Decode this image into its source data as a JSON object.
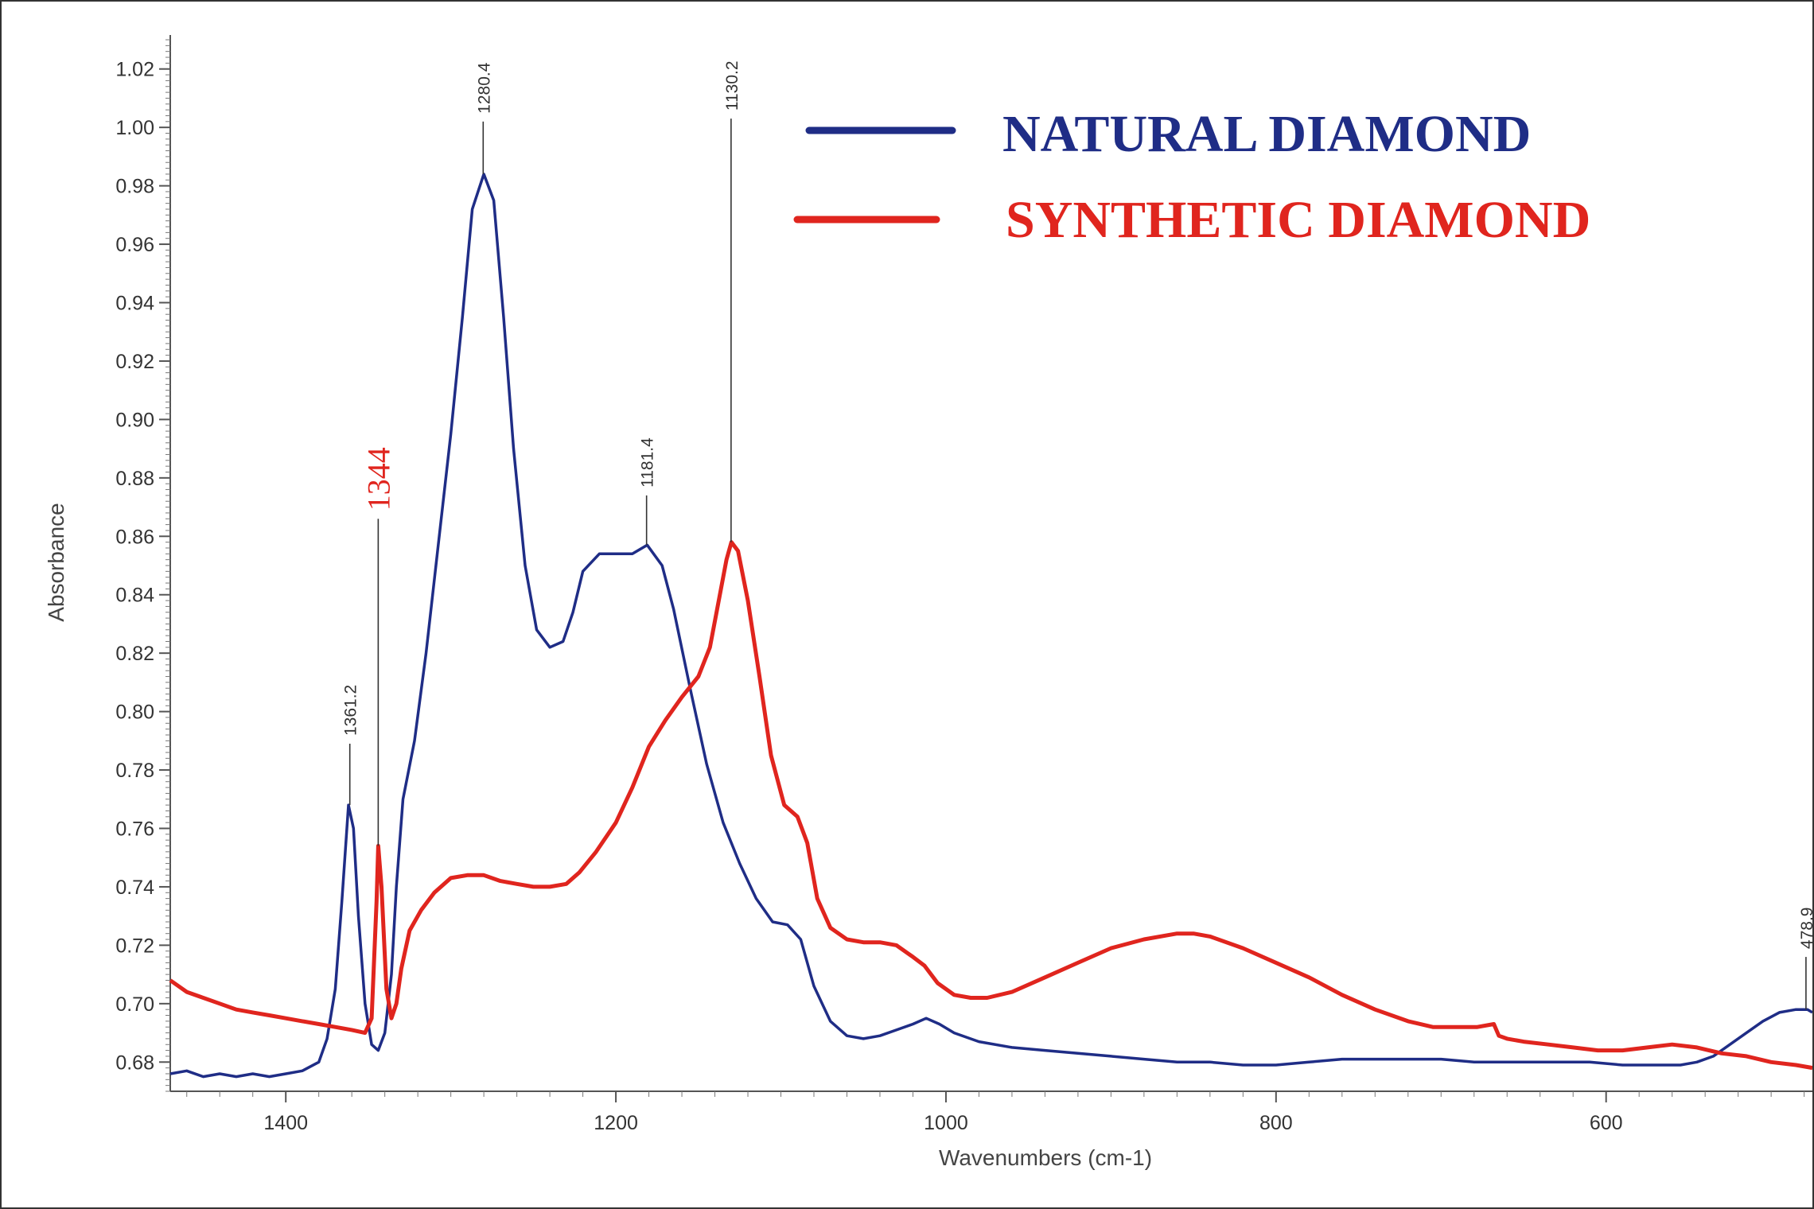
{
  "chart_data": {
    "type": "line",
    "title": "",
    "xlabel": "Wavenumbers (cm-1)",
    "ylabel": "Absorbance",
    "xlim": [
      1470,
      475
    ],
    "ylim": [
      0.67,
      1.03
    ],
    "x_ticks": [
      1400,
      1200,
      1000,
      800,
      600
    ],
    "y_ticks": [
      "0.68",
      "0.70",
      "0.72",
      "0.74",
      "0.76",
      "0.78",
      "0.80",
      "0.82",
      "0.84",
      "0.86",
      "0.88",
      "0.90",
      "0.92",
      "0.94",
      "0.96",
      "0.98",
      "1.00",
      "1.02"
    ],
    "grid": false,
    "legend_position": "top-right",
    "colors": {
      "natural": "#1f2d86",
      "synthetic": "#e0251e"
    },
    "series": [
      {
        "name": "NATURAL DIAMOND",
        "color": "#1f2d86",
        "points": [
          [
            1470,
            0.676
          ],
          [
            1460,
            0.677
          ],
          [
            1450,
            0.675
          ],
          [
            1440,
            0.676
          ],
          [
            1430,
            0.675
          ],
          [
            1420,
            0.676
          ],
          [
            1410,
            0.675
          ],
          [
            1400,
            0.676
          ],
          [
            1390,
            0.677
          ],
          [
            1380,
            0.68
          ],
          [
            1375,
            0.688
          ],
          [
            1370,
            0.705
          ],
          [
            1366,
            0.735
          ],
          [
            1362,
            0.768
          ],
          [
            1359,
            0.76
          ],
          [
            1356,
            0.73
          ],
          [
            1352,
            0.7
          ],
          [
            1348,
            0.686
          ],
          [
            1344,
            0.684
          ],
          [
            1340,
            0.69
          ],
          [
            1336,
            0.71
          ],
          [
            1333,
            0.74
          ],
          [
            1329,
            0.77
          ],
          [
            1322,
            0.79
          ],
          [
            1315,
            0.82
          ],
          [
            1308,
            0.855
          ],
          [
            1300,
            0.895
          ],
          [
            1293,
            0.935
          ],
          [
            1287,
            0.972
          ],
          [
            1280,
            0.984
          ],
          [
            1274,
            0.975
          ],
          [
            1268,
            0.935
          ],
          [
            1262,
            0.89
          ],
          [
            1255,
            0.85
          ],
          [
            1248,
            0.828
          ],
          [
            1240,
            0.822
          ],
          [
            1232,
            0.824
          ],
          [
            1226,
            0.834
          ],
          [
            1220,
            0.848
          ],
          [
            1210,
            0.854
          ],
          [
            1200,
            0.854
          ],
          [
            1190,
            0.854
          ],
          [
            1181,
            0.857
          ],
          [
            1172,
            0.85
          ],
          [
            1165,
            0.835
          ],
          [
            1155,
            0.808
          ],
          [
            1145,
            0.782
          ],
          [
            1135,
            0.762
          ],
          [
            1125,
            0.748
          ],
          [
            1115,
            0.736
          ],
          [
            1105,
            0.728
          ],
          [
            1096,
            0.727
          ],
          [
            1088,
            0.722
          ],
          [
            1080,
            0.706
          ],
          [
            1070,
            0.694
          ],
          [
            1060,
            0.689
          ],
          [
            1050,
            0.688
          ],
          [
            1040,
            0.689
          ],
          [
            1030,
            0.691
          ],
          [
            1020,
            0.693
          ],
          [
            1012,
            0.695
          ],
          [
            1004,
            0.693
          ],
          [
            995,
            0.69
          ],
          [
            980,
            0.687
          ],
          [
            960,
            0.685
          ],
          [
            940,
            0.684
          ],
          [
            920,
            0.683
          ],
          [
            900,
            0.682
          ],
          [
            880,
            0.681
          ],
          [
            860,
            0.68
          ],
          [
            840,
            0.68
          ],
          [
            820,
            0.679
          ],
          [
            800,
            0.679
          ],
          [
            780,
            0.68
          ],
          [
            760,
            0.681
          ],
          [
            740,
            0.681
          ],
          [
            720,
            0.681
          ],
          [
            700,
            0.681
          ],
          [
            680,
            0.68
          ],
          [
            665,
            0.68
          ],
          [
            650,
            0.68
          ],
          [
            630,
            0.68
          ],
          [
            610,
            0.68
          ],
          [
            590,
            0.679
          ],
          [
            570,
            0.679
          ],
          [
            555,
            0.679
          ],
          [
            545,
            0.68
          ],
          [
            535,
            0.682
          ],
          [
            525,
            0.686
          ],
          [
            515,
            0.69
          ],
          [
            505,
            0.694
          ],
          [
            495,
            0.697
          ],
          [
            485,
            0.698
          ],
          [
            478,
            0.698
          ],
          [
            475,
            0.697
          ]
        ]
      },
      {
        "name": "SYNTHETIC DIAMOND",
        "color": "#e0251e",
        "points": [
          [
            1470,
            0.708
          ],
          [
            1460,
            0.704
          ],
          [
            1450,
            0.702
          ],
          [
            1440,
            0.7
          ],
          [
            1430,
            0.698
          ],
          [
            1420,
            0.697
          ],
          [
            1410,
            0.696
          ],
          [
            1400,
            0.695
          ],
          [
            1390,
            0.694
          ],
          [
            1380,
            0.693
          ],
          [
            1370,
            0.692
          ],
          [
            1360,
            0.691
          ],
          [
            1352,
            0.69
          ],
          [
            1348,
            0.695
          ],
          [
            1345,
            0.735
          ],
          [
            1344,
            0.754
          ],
          [
            1342,
            0.74
          ],
          [
            1339,
            0.705
          ],
          [
            1336,
            0.695
          ],
          [
            1333,
            0.7
          ],
          [
            1330,
            0.712
          ],
          [
            1325,
            0.725
          ],
          [
            1318,
            0.732
          ],
          [
            1310,
            0.738
          ],
          [
            1300,
            0.743
          ],
          [
            1290,
            0.744
          ],
          [
            1280,
            0.744
          ],
          [
            1270,
            0.742
          ],
          [
            1260,
            0.741
          ],
          [
            1250,
            0.74
          ],
          [
            1240,
            0.74
          ],
          [
            1230,
            0.741
          ],
          [
            1222,
            0.745
          ],
          [
            1212,
            0.752
          ],
          [
            1200,
            0.762
          ],
          [
            1190,
            0.774
          ],
          [
            1180,
            0.788
          ],
          [
            1170,
            0.797
          ],
          [
            1160,
            0.805
          ],
          [
            1150,
            0.812
          ],
          [
            1143,
            0.822
          ],
          [
            1137,
            0.84
          ],
          [
            1133,
            0.852
          ],
          [
            1130,
            0.858
          ],
          [
            1126,
            0.855
          ],
          [
            1120,
            0.838
          ],
          [
            1113,
            0.812
          ],
          [
            1106,
            0.785
          ],
          [
            1098,
            0.768
          ],
          [
            1090,
            0.764
          ],
          [
            1084,
            0.755
          ],
          [
            1078,
            0.736
          ],
          [
            1070,
            0.726
          ],
          [
            1060,
            0.722
          ],
          [
            1050,
            0.721
          ],
          [
            1040,
            0.721
          ],
          [
            1030,
            0.72
          ],
          [
            1020,
            0.716
          ],
          [
            1013,
            0.713
          ],
          [
            1005,
            0.707
          ],
          [
            995,
            0.703
          ],
          [
            985,
            0.702
          ],
          [
            975,
            0.702
          ],
          [
            960,
            0.704
          ],
          [
            940,
            0.709
          ],
          [
            920,
            0.714
          ],
          [
            900,
            0.719
          ],
          [
            880,
            0.722
          ],
          [
            860,
            0.724
          ],
          [
            850,
            0.724
          ],
          [
            840,
            0.723
          ],
          [
            820,
            0.719
          ],
          [
            800,
            0.714
          ],
          [
            780,
            0.709
          ],
          [
            760,
            0.703
          ],
          [
            740,
            0.698
          ],
          [
            720,
            0.694
          ],
          [
            705,
            0.692
          ],
          [
            690,
            0.692
          ],
          [
            678,
            0.692
          ],
          [
            668,
            0.693
          ],
          [
            665,
            0.689
          ],
          [
            660,
            0.688
          ],
          [
            650,
            0.687
          ],
          [
            635,
            0.686
          ],
          [
            620,
            0.685
          ],
          [
            605,
            0.684
          ],
          [
            590,
            0.684
          ],
          [
            575,
            0.685
          ],
          [
            560,
            0.686
          ],
          [
            545,
            0.685
          ],
          [
            530,
            0.683
          ],
          [
            515,
            0.682
          ],
          [
            500,
            0.68
          ],
          [
            485,
            0.679
          ],
          [
            475,
            0.678
          ]
        ]
      }
    ],
    "peak_annotations": [
      {
        "label": "1361.2",
        "x": 1361.2,
        "y_top": 0.789,
        "y_peak": 0.768,
        "color": "#333333"
      },
      {
        "label": "1344",
        "x": 1344,
        "y_top": 0.866,
        "y_peak": 0.754,
        "color": "#e0251e",
        "red": true
      },
      {
        "label": "1280.4",
        "x": 1280.4,
        "y_top": 1.002,
        "y_peak": 0.984,
        "color": "#333333"
      },
      {
        "label": "1181.4",
        "x": 1181.4,
        "y_top": 0.874,
        "y_peak": 0.857,
        "color": "#333333"
      },
      {
        "label": "1130.2",
        "x": 1130.2,
        "y_top": 1.003,
        "y_peak": 0.858,
        "color": "#333333"
      },
      {
        "label": "478.9",
        "x": 478.9,
        "y_top": 0.716,
        "y_peak": 0.698,
        "color": "#333333"
      }
    ]
  }
}
